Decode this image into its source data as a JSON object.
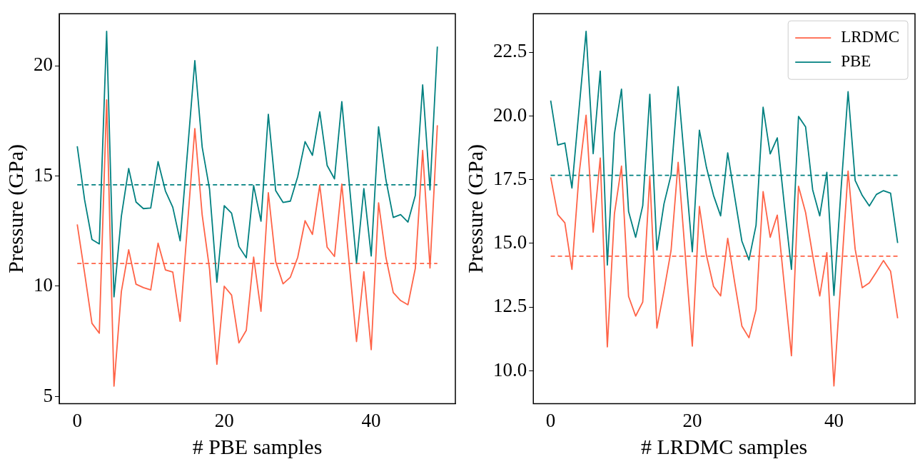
{
  "chart_data": [
    {
      "type": "line",
      "xlabel": "# PBE samples",
      "ylabel": "Pressure (GPa)",
      "x": [
        0,
        1,
        2,
        3,
        4,
        5,
        6,
        7,
        8,
        9,
        10,
        11,
        12,
        13,
        14,
        15,
        16,
        17,
        18,
        19,
        20,
        21,
        22,
        23,
        24,
        25,
        26,
        27,
        28,
        29,
        30,
        31,
        32,
        33,
        34,
        35,
        36,
        37,
        38,
        39,
        40,
        41,
        42,
        43,
        44,
        45,
        46,
        47,
        48,
        49
      ],
      "xlim": [
        -2.45,
        51.45
      ],
      "xticks": [
        0,
        20,
        40
      ],
      "ylim": [
        4.67,
        22.36
      ],
      "yticks": [
        5,
        10,
        15,
        20
      ],
      "grid": false,
      "legend": false,
      "marker": "none",
      "line_style": "solid",
      "series": [
        {
          "color": "#ff6347",
          "values": [
            12.8,
            10.6,
            8.32,
            7.87,
            18.45,
            5.47,
            9.75,
            11.65,
            10.09,
            9.94,
            9.83,
            11.95,
            10.74,
            10.64,
            8.41,
            12.77,
            17.15,
            13.23,
            10.78,
            6.46,
            10.0,
            9.6,
            7.43,
            8.0,
            11.32,
            8.86,
            14.24,
            11.12,
            10.11,
            10.41,
            11.31,
            12.97,
            12.35,
            14.58,
            11.77,
            11.35,
            14.63,
            11.06,
            7.49,
            10.66,
            7.12,
            13.78,
            11.31,
            9.71,
            9.35,
            9.16,
            10.81,
            16.16,
            10.83,
            17.3
          ]
        },
        {
          "color": "#008080",
          "values": [
            16.35,
            13.92,
            12.12,
            11.92,
            21.56,
            9.52,
            13.17,
            15.34,
            13.82,
            13.52,
            13.55,
            15.65,
            14.32,
            13.58,
            12.06,
            16.1,
            20.23,
            16.31,
            14.41,
            10.18,
            13.65,
            13.31,
            11.8,
            11.29,
            14.57,
            12.95,
            17.8,
            14.34,
            13.8,
            13.86,
            14.97,
            16.56,
            15.94,
            17.91,
            15.48,
            14.87,
            18.37,
            14.71,
            11.06,
            14.43,
            11.37,
            17.23,
            14.83,
            13.12,
            13.25,
            12.91,
            14.12,
            19.13,
            14.37,
            20.87
          ]
        }
      ],
      "ref_lines": [
        {
          "axis": "y",
          "value": 11.03,
          "color": "#ff6347",
          "line_style": "dashed"
        },
        {
          "axis": "y",
          "value": 14.6,
          "color": "#008080",
          "line_style": "dashed"
        }
      ]
    },
    {
      "type": "line",
      "xlabel": "# LRDMC samples",
      "ylabel": "Pressure (GPa)",
      "x": [
        0,
        1,
        2,
        3,
        4,
        5,
        6,
        7,
        8,
        9,
        10,
        11,
        12,
        13,
        14,
        15,
        16,
        17,
        18,
        19,
        20,
        21,
        22,
        23,
        24,
        25,
        26,
        27,
        28,
        29,
        30,
        31,
        32,
        33,
        34,
        35,
        36,
        37,
        38,
        39,
        40,
        41,
        42,
        43,
        44,
        45,
        46,
        47,
        48,
        49
      ],
      "xlim": [
        -2.45,
        51.45
      ],
      "xticks": [
        0,
        20,
        40
      ],
      "ylim": [
        8.71,
        24.01
      ],
      "yticks": [
        {
          "value": 10,
          "label": "10.0"
        },
        12.5,
        {
          "value": 15,
          "label": "15.0"
        },
        17.5,
        {
          "value": 20,
          "label": "20.0"
        },
        22.5
      ],
      "grid": false,
      "legend": "top right",
      "marker": "none",
      "line_style": "solid",
      "series": [
        {
          "name": "LRDMC",
          "color": "#ff6347",
          "values": [
            17.59,
            16.13,
            15.81,
            13.98,
            17.69,
            20.03,
            15.44,
            18.35,
            10.94,
            16.16,
            18.03,
            12.92,
            12.15,
            12.7,
            17.64,
            11.68,
            13.14,
            14.72,
            18.18,
            14.58,
            10.97,
            16.45,
            14.53,
            13.31,
            12.94,
            15.2,
            13.44,
            11.76,
            11.3,
            12.4,
            17.03,
            15.24,
            16.11,
            13.34,
            10.59,
            17.24,
            16.21,
            14.53,
            12.94,
            14.64,
            9.41,
            13.64,
            17.84,
            14.77,
            13.26,
            13.45,
            13.88,
            14.33,
            13.91,
            12.06
          ]
        },
        {
          "name": "PBE",
          "color": "#008080",
          "values": [
            20.6,
            18.86,
            18.94,
            17.17,
            20.25,
            23.32,
            18.52,
            21.76,
            14.15,
            19.3,
            21.05,
            16.25,
            15.24,
            16.48,
            20.85,
            14.74,
            16.55,
            17.69,
            21.15,
            17.92,
            14.67,
            19.44,
            17.98,
            16.88,
            16.08,
            18.55,
            16.8,
            15.09,
            14.35,
            15.71,
            20.34,
            18.51,
            19.14,
            16.5,
            13.98,
            19.98,
            19.57,
            17.1,
            16.08,
            17.79,
            12.96,
            17.1,
            20.95,
            17.47,
            16.88,
            16.47,
            16.92,
            17.07,
            16.97,
            15.02
          ]
        }
      ],
      "ref_lines": [
        {
          "axis": "y",
          "value": 14.5,
          "color": "#ff6347",
          "line_style": "dashed"
        },
        {
          "axis": "y",
          "value": 17.67,
          "color": "#008080",
          "line_style": "dashed"
        }
      ]
    }
  ]
}
